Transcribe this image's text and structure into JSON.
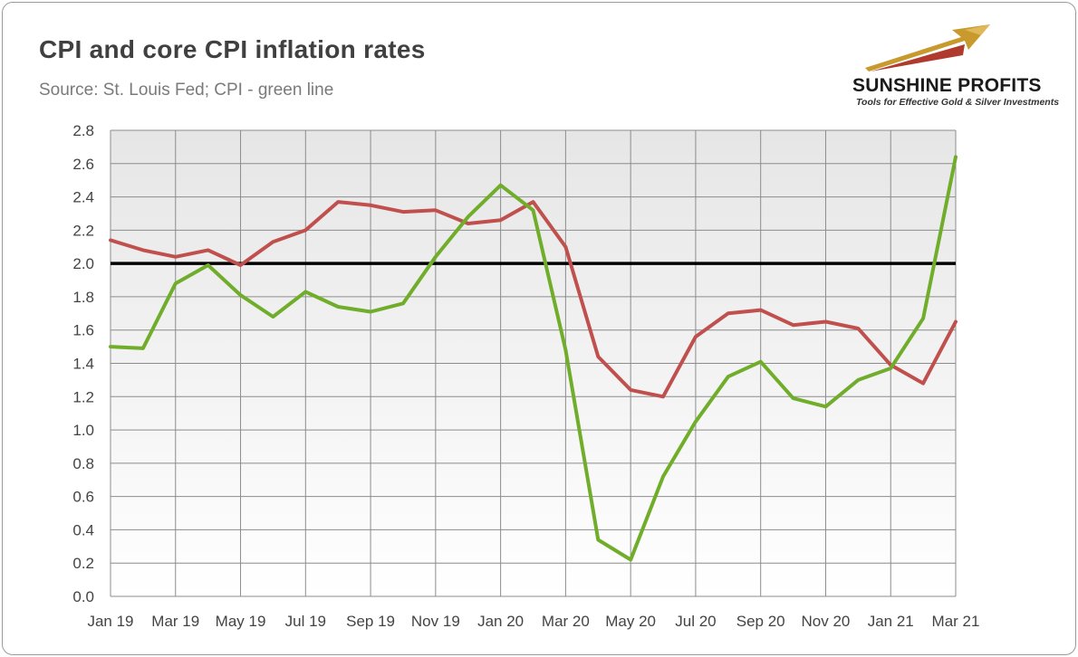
{
  "title": "CPI and core CPI inflation rates",
  "subtitle": "Source: St. Louis Fed; CPI - green line",
  "logo": {
    "name": "SUNSHINE PROFITS",
    "tagline": "Tools for Effective Gold & Silver Investments"
  },
  "colors": {
    "cpi": "#70ad2a",
    "core": "#c0504d",
    "reference": "#000000",
    "grid": "#8c8c8c"
  },
  "chart_data": {
    "type": "line",
    "title": "CPI and core CPI inflation rates",
    "xlabel": "",
    "ylabel": "",
    "ylim": [
      0,
      2.8
    ],
    "ytick_labels": [
      "0.0",
      "0.2",
      "0.4",
      "0.6",
      "0.8",
      "1.0",
      "1.2",
      "1.4",
      "1.6",
      "1.8",
      "2.0",
      "2.2",
      "2.4",
      "2.6",
      "2.8"
    ],
    "x": [
      "Jan 19",
      "Feb 19",
      "Mar 19",
      "Apr 19",
      "May 19",
      "Jun 19",
      "Jul 19",
      "Aug 19",
      "Sep 19",
      "Oct 19",
      "Nov 19",
      "Dec 19",
      "Jan 20",
      "Feb 20",
      "Mar 20",
      "Apr 20",
      "May 20",
      "Jun 20",
      "Jul 20",
      "Aug 20",
      "Sep 20",
      "Oct 20",
      "Nov 20",
      "Dec 20",
      "Jan 21",
      "Feb 21",
      "Mar 21"
    ],
    "xtick_labels": [
      "Jan 19",
      "Mar 19",
      "May 19",
      "Jul 19",
      "Sep 19",
      "Nov 19",
      "Jan 20",
      "Mar 20",
      "May 20",
      "Jul 20",
      "Sep 20",
      "Nov 20",
      "Jan 21",
      "Mar 21"
    ],
    "reference_line": 2.0,
    "series": [
      {
        "name": "CPI",
        "color": "#70ad2a",
        "values": [
          1.5,
          1.49,
          1.88,
          1.99,
          1.81,
          1.68,
          1.83,
          1.74,
          1.71,
          1.76,
          2.04,
          2.28,
          2.47,
          2.32,
          1.48,
          0.34,
          0.22,
          0.72,
          1.05,
          1.32,
          1.41,
          1.19,
          1.14,
          1.3,
          1.37,
          1.67,
          2.64
        ]
      },
      {
        "name": "Core CPI",
        "color": "#c0504d",
        "values": [
          2.14,
          2.08,
          2.04,
          2.08,
          1.99,
          2.13,
          2.2,
          2.37,
          2.35,
          2.31,
          2.32,
          2.24,
          2.26,
          2.37,
          2.1,
          1.44,
          1.24,
          1.2,
          1.56,
          1.7,
          1.72,
          1.63,
          1.65,
          1.61,
          1.39,
          1.28,
          1.65
        ]
      }
    ]
  }
}
